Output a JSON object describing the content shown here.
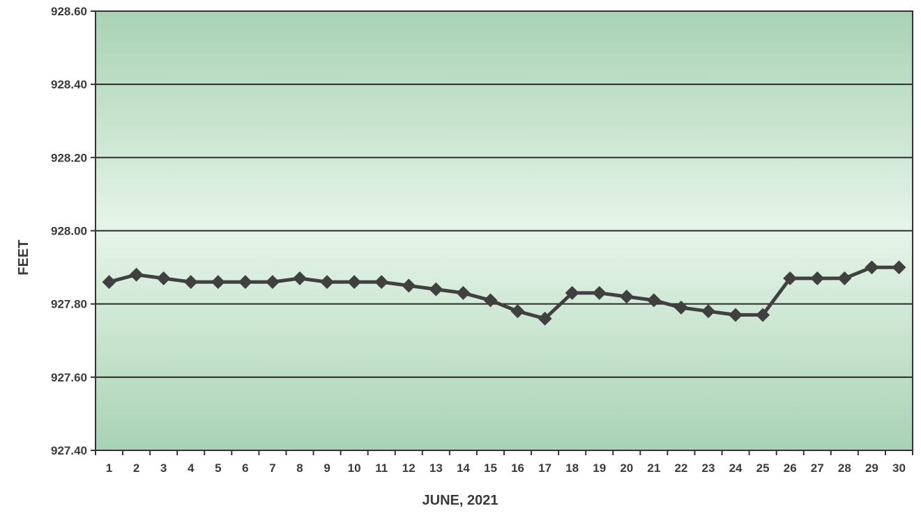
{
  "chart_data": {
    "type": "line",
    "title": "",
    "xlabel": "JUNE, 2021",
    "ylabel": "FEET",
    "ylim": [
      927.4,
      928.6
    ],
    "yticks": [
      "927.40",
      "927.60",
      "927.80",
      "928.00",
      "928.20",
      "928.40",
      "928.60"
    ],
    "grid": true,
    "legend": "none",
    "colors": {
      "plot_edge": "#a9d2b4",
      "plot_center": "#e6f5e9",
      "gridline": "#2a2a2a",
      "series": "#404040"
    },
    "x": [
      1,
      2,
      3,
      4,
      5,
      6,
      7,
      8,
      9,
      10,
      11,
      12,
      13,
      14,
      15,
      16,
      17,
      18,
      19,
      20,
      21,
      22,
      23,
      24,
      25,
      26,
      27,
      28,
      29,
      30
    ],
    "series": [
      {
        "values": [
          927.86,
          927.88,
          927.87,
          927.86,
          927.86,
          927.86,
          927.86,
          927.87,
          927.86,
          927.86,
          927.86,
          927.85,
          927.84,
          927.83,
          927.81,
          927.78,
          927.76,
          927.83,
          927.83,
          927.82,
          927.81,
          927.79,
          927.78,
          927.77,
          927.77,
          927.87,
          927.87,
          927.87,
          927.9,
          927.9
        ]
      }
    ]
  }
}
